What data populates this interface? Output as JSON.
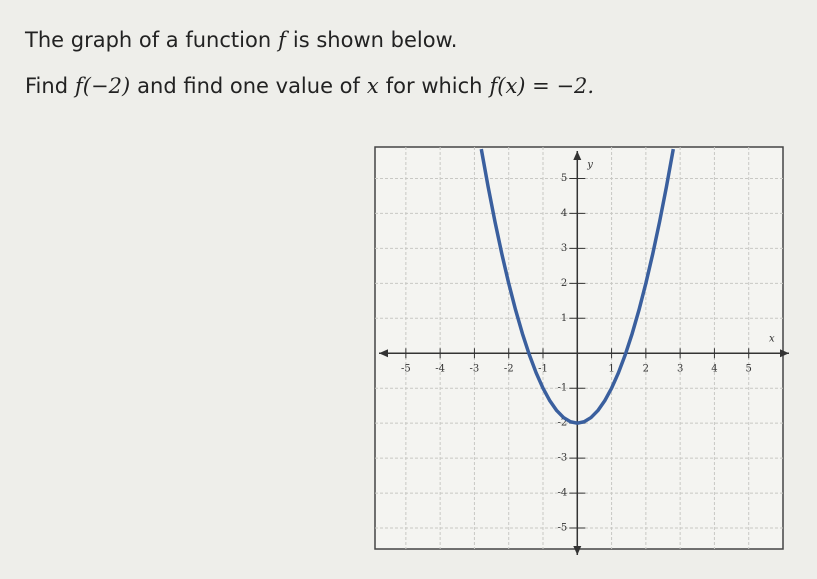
{
  "question": {
    "line1": [
      "The graph of a function",
      "f",
      "is shown below."
    ],
    "line2": [
      "Find",
      "f(−2)",
      "and find one value of",
      "x",
      "for which",
      "f(x) = −2."
    ]
  },
  "chart_data": {
    "type": "line",
    "x_label": "x",
    "y_label": "y",
    "x": [
      -2.8,
      -2.6,
      -2.4,
      -2.2,
      -2,
      -1.8,
      -1.6,
      -1.4,
      -1.2,
      -1,
      -0.8,
      -0.6,
      -0.4,
      -0.2,
      0,
      0.2,
      0.4,
      0.6,
      0.8,
      1,
      1.2,
      1.4,
      1.6,
      1.8,
      2,
      2.2,
      2.4,
      2.6,
      2.8
    ],
    "series": [
      {
        "color": "#3a5f9e",
        "values": [
          5.84,
          4.76,
          3.76,
          2.84,
          2,
          1.24,
          0.56,
          -0.04,
          -0.56,
          -1,
          -1.36,
          -1.64,
          -1.84,
          -1.96,
          -2,
          -1.96,
          -1.84,
          -1.64,
          -1.36,
          -1,
          -0.56,
          -0.04,
          0.56,
          1.24,
          2,
          2.84,
          3.76,
          4.76,
          5.84
        ]
      }
    ],
    "xlim": [
      -5.9,
      6
    ],
    "ylim": [
      -5.6,
      5.9
    ],
    "xticks": [
      -5,
      -4,
      -3,
      -2,
      -1,
      1,
      2,
      3,
      4,
      5
    ],
    "yticks": [
      -5,
      -4,
      -3,
      -2,
      -1,
      1,
      2,
      3,
      4,
      5
    ],
    "grid": true
  }
}
